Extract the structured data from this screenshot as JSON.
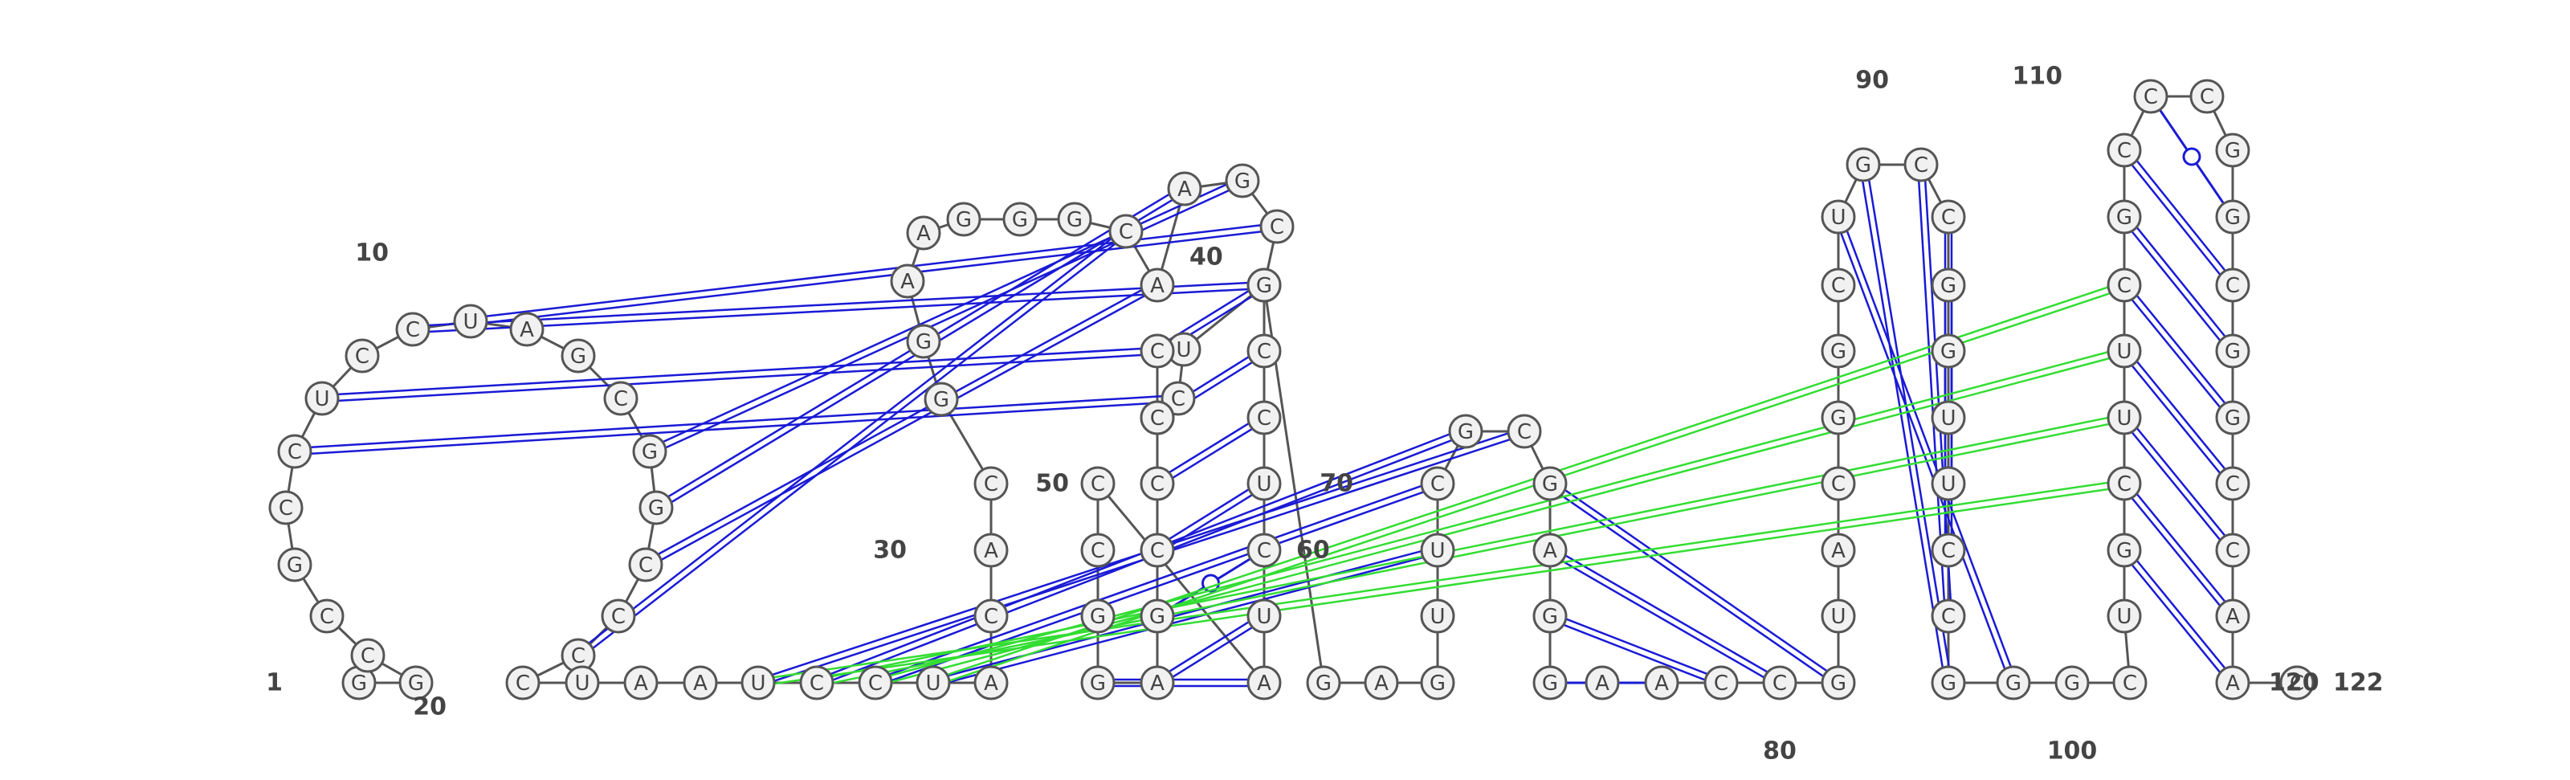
{
  "sequence": "GGCCGCCUCCUAGCGGCCCCUAAUCCUACACGGAAGGGCAAGCUUCUCCCCGAGGCCAUCUCCGGAGUUCGCGAGGAACCGUACGGCUGCCGGUUCCGGGCUGCUUCGCCCGGCGGCCAAUC",
  "numbers": [
    {
      "label": "1",
      "index": 0
    },
    {
      "label": "10",
      "index": 9
    },
    {
      "label": "20",
      "index": 19
    },
    {
      "label": "30",
      "index": 29
    },
    {
      "label": "40",
      "index": 39
    },
    {
      "label": "50",
      "index": 49
    },
    {
      "label": "60",
      "index": 59
    },
    {
      "label": "70",
      "index": 69
    },
    {
      "label": "80",
      "index": 79
    },
    {
      "label": "90",
      "index": 89
    },
    {
      "label": "100",
      "index": 99
    },
    {
      "label": "110",
      "index": 109
    },
    {
      "label": "120",
      "index": 119
    },
    {
      "label": "122",
      "index": 121
    }
  ],
  "pairs": [
    {
      "i": 23,
      "j": 71,
      "kind": "canonical"
    },
    {
      "i": 24,
      "j": 70,
      "kind": "canonical"
    },
    {
      "i": 25,
      "j": 69,
      "kind": "canonical"
    },
    {
      "i": 26,
      "j": 68,
      "kind": "canonical"
    },
    {
      "i": 47,
      "j": 63,
      "kind": "canonical"
    },
    {
      "i": 48,
      "j": 62,
      "kind": "canonical"
    },
    {
      "i": 49,
      "j": 61,
      "kind": "canonical"
    },
    {
      "i": 50,
      "j": 60,
      "kind": "canonical"
    },
    {
      "i": 51,
      "j": 59,
      "kind": "wobble"
    },
    {
      "i": 52,
      "j": 58,
      "kind": "canonical"
    },
    {
      "i": 53,
      "j": 57,
      "kind": "canonical"
    },
    {
      "i": 72,
      "j": 80,
      "kind": "canonical"
    },
    {
      "i": 73,
      "j": 79,
      "kind": "canonical"
    },
    {
      "i": 74,
      "j": 78,
      "kind": "canonical"
    },
    {
      "i": 75,
      "j": 77,
      "kind": "wobble"
    },
    {
      "i": 87,
      "j": 98,
      "kind": "canonical"
    },
    {
      "i": 88,
      "j": 97,
      "kind": "canonical"
    },
    {
      "i": 89,
      "j": 96,
      "kind": "canonical"
    },
    {
      "i": 90,
      "j": 95,
      "kind": "canonical"
    },
    {
      "i": 91,
      "j": 94,
      "kind": "canonical"
    },
    {
      "i": 92,
      "j": 93,
      "kind": "canonical"
    },
    {
      "i": 102,
      "j": 119,
      "kind": "canonical"
    },
    {
      "i": 103,
      "j": 118,
      "kind": "canonical"
    },
    {
      "i": 104,
      "j": 117,
      "kind": "canonical"
    },
    {
      "i": 105,
      "j": 116,
      "kind": "canonical"
    },
    {
      "i": 106,
      "j": 115,
      "kind": "canonical"
    },
    {
      "i": 107,
      "j": 114,
      "kind": "canonical"
    },
    {
      "i": 108,
      "j": 113,
      "kind": "canonical"
    },
    {
      "i": 109,
      "j": 112,
      "kind": "wobble"
    }
  ],
  "tertiary_blue": [
    [
      6,
      44
    ],
    [
      7,
      43
    ],
    [
      9,
      42
    ],
    [
      10,
      41
    ],
    [
      14,
      40
    ],
    [
      15,
      39
    ],
    [
      16,
      38
    ],
    [
      18,
      37
    ]
  ],
  "tertiary_green": [
    [
      1,
      4
    ],
    [
      2,
      3
    ],
    [
      7,
      12
    ],
    [
      8,
      11
    ],
    [
      11,
      15
    ],
    [
      3,
      24
    ],
    [
      5,
      26
    ],
    [
      12,
      34
    ],
    [
      27,
      30
    ],
    [
      28,
      29
    ]
  ],
  "colors": {
    "backbone": "#555555",
    "canonical_pair": "#1a1ad6",
    "wobble_pair": "#1a1ad6",
    "green_interaction": "#33dd33",
    "node_fill": "#f1f1f1",
    "node_stroke": "#555555",
    "text": "#444444"
  }
}
